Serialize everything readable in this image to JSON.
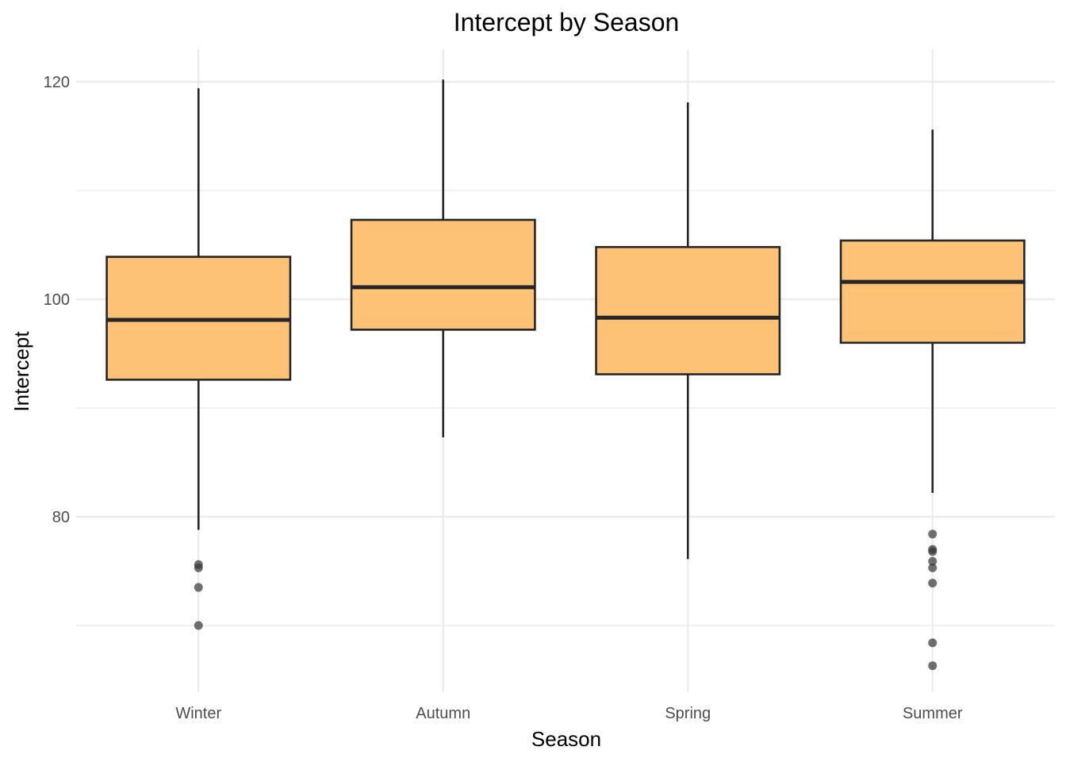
{
  "chart_data": {
    "type": "boxplot",
    "title": "Intercept by Season",
    "xlabel": "Season",
    "ylabel": "Intercept",
    "categories": [
      "Winter",
      "Autumn",
      "Spring",
      "Summer"
    ],
    "ylim": [
      66,
      122
    ],
    "y_ticks": [
      80,
      100,
      120
    ],
    "y_minor_ticks": [
      70,
      90,
      110
    ],
    "grid": true,
    "legend": "none",
    "colors": {
      "box_fill": "#fdbf6f",
      "box_stroke": "#262626",
      "outlier": "#333333",
      "grid": "#ebebeb"
    },
    "boxes": [
      {
        "category": "Winter",
        "whisker_low": 78.8,
        "q1": 92.6,
        "median": 98.1,
        "q3": 103.9,
        "whisker_high": 119.4,
        "outliers": [
          75.6,
          75.3,
          73.5,
          70.0
        ]
      },
      {
        "category": "Autumn",
        "whisker_low": 87.3,
        "q1": 97.2,
        "median": 101.1,
        "q3": 107.3,
        "whisker_high": 120.2,
        "outliers": []
      },
      {
        "category": "Spring",
        "whisker_low": 76.1,
        "q1": 93.1,
        "median": 98.3,
        "q3": 104.8,
        "whisker_high": 118.1,
        "outliers": []
      },
      {
        "category": "Summer",
        "whisker_low": 82.2,
        "q1": 96.0,
        "median": 101.6,
        "q3": 105.4,
        "whisker_high": 115.6,
        "outliers": [
          78.4,
          77.0,
          76.8,
          75.9,
          75.3,
          73.9,
          68.4,
          66.3
        ]
      }
    ]
  }
}
